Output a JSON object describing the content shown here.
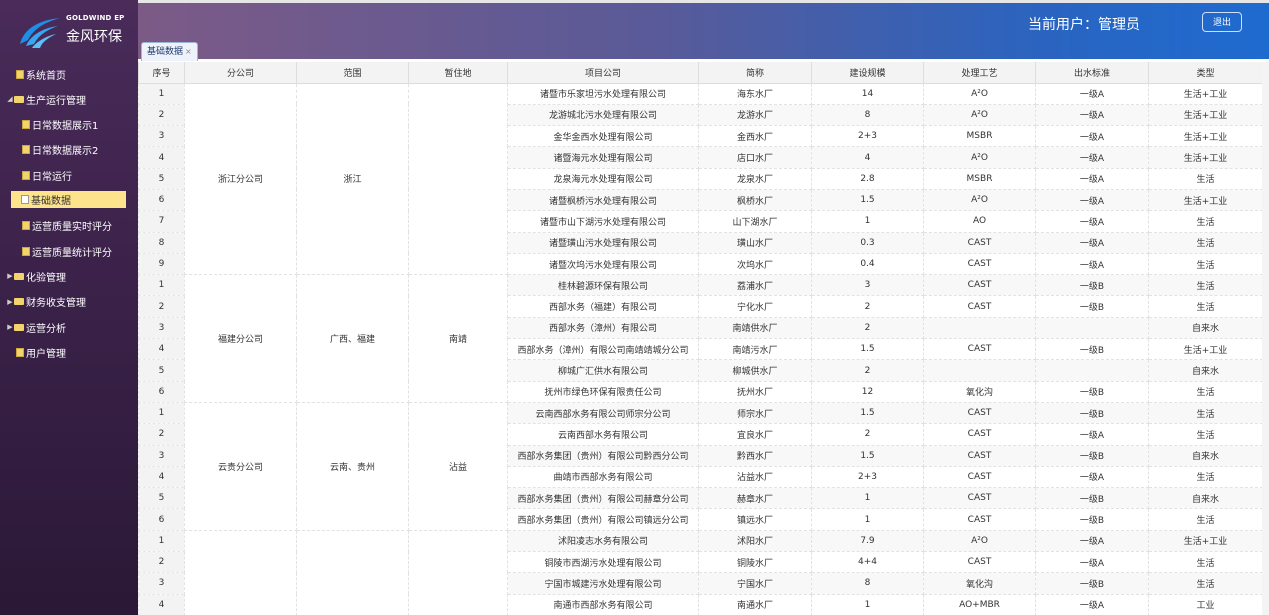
{
  "logo": {
    "en": "GOLDWIND EP",
    "cn": "金风环保"
  },
  "header": {
    "user": "当前用户：管理员",
    "logout": "退出"
  },
  "tab": {
    "label": "基础数据",
    "close": "×"
  },
  "sidebar": {
    "items": [
      {
        "label": "系统首页",
        "type": "file",
        "level": 0
      },
      {
        "label": "生产运行管理",
        "type": "folder",
        "level": 0,
        "expanded": true
      },
      {
        "label": "日常数据展示1",
        "type": "file",
        "level": 1
      },
      {
        "label": "日常数据展示2",
        "type": "file",
        "level": 1
      },
      {
        "label": "日常运行",
        "type": "file",
        "level": 1
      },
      {
        "label": "基础数据",
        "type": "file",
        "level": 1,
        "selected": true
      },
      {
        "label": "运营质量实时评分",
        "type": "file",
        "level": 1
      },
      {
        "label": "运营质量统计评分",
        "type": "file",
        "level": 1
      },
      {
        "label": "化验管理",
        "type": "folder",
        "level": 0,
        "expanded": false
      },
      {
        "label": "财务收支管理",
        "type": "folder",
        "level": 0,
        "expanded": false
      },
      {
        "label": "运营分析",
        "type": "folder",
        "level": 0,
        "expanded": false
      },
      {
        "label": "用户管理",
        "type": "file",
        "level": 0
      }
    ]
  },
  "table": {
    "columns": [
      "序号",
      "分公司",
      "范围",
      "暂住地",
      "项目公司",
      "简称",
      "建设规模",
      "处理工艺",
      "出水标准",
      "类型"
    ],
    "groups": [
      {
        "company": "浙江分公司",
        "scope": "浙江",
        "location": "",
        "rows": [
          [
            "1",
            "诸暨市乐家坦污水处理有限公司",
            "海东水厂",
            "14",
            "A²O",
            "一级A",
            "生活+工业"
          ],
          [
            "2",
            "龙游城北污水处理有限公司",
            "龙游水厂",
            "8",
            "A²O",
            "一级A",
            "生活+工业"
          ],
          [
            "3",
            "金华金西水处理有限公司",
            "金西水厂",
            "2+3",
            "MSBR",
            "一级A",
            "生活+工业"
          ],
          [
            "4",
            "诸暨海元水处理有限公司",
            "店口水厂",
            "4",
            "A²O",
            "一级A",
            "生活+工业"
          ],
          [
            "5",
            "龙泉海元水处理有限公司",
            "龙泉水厂",
            "2.8",
            "MSBR",
            "一级A",
            "生活"
          ],
          [
            "6",
            "诸暨枫桥污水处理有限公司",
            "枫桥水厂",
            "1.5",
            "A²O",
            "一级A",
            "生活+工业"
          ],
          [
            "7",
            "诸暨市山下湖污水处理有限公司",
            "山下湖水厂",
            "1",
            "AO",
            "一级A",
            "生活"
          ],
          [
            "8",
            "诸暨璜山污水处理有限公司",
            "璜山水厂",
            "0.3",
            "CAST",
            "一级A",
            "生活"
          ],
          [
            "9",
            "诸暨次坞污水处理有限公司",
            "次坞水厂",
            "0.4",
            "CAST",
            "一级A",
            "生活"
          ]
        ]
      },
      {
        "company": "福建分公司",
        "scope": "广西、福建",
        "location": "南靖",
        "rows": [
          [
            "1",
            "桂林碧源环保有限公司",
            "荔浦水厂",
            "3",
            "CAST",
            "一级B",
            "生活"
          ],
          [
            "2",
            "西部水务（福建）有限公司",
            "宁化水厂",
            "2",
            "CAST",
            "一级B",
            "生活"
          ],
          [
            "3",
            "西部水务（漳州）有限公司",
            "南靖供水厂",
            "2",
            "",
            "",
            "自来水"
          ],
          [
            "4",
            "西部水务（漳州）有限公司南靖靖城分公司",
            "南靖污水厂",
            "1.5",
            "CAST",
            "一级B",
            "生活+工业"
          ],
          [
            "5",
            "柳城广汇供水有限公司",
            "柳城供水厂",
            "2",
            "",
            "",
            "自来水"
          ],
          [
            "6",
            "抚州市绿色环保有限责任公司",
            "抚州水厂",
            "12",
            "氧化沟",
            "一级B",
            "生活"
          ]
        ]
      },
      {
        "company": "云贵分公司",
        "scope": "云南、贵州",
        "location": "沾益",
        "rows": [
          [
            "1",
            "云南西部水务有限公司师宗分公司",
            "师宗水厂",
            "1.5",
            "CAST",
            "一级B",
            "生活"
          ],
          [
            "2",
            "云南西部水务有限公司",
            "宜良水厂",
            "2",
            "CAST",
            "一级A",
            "生活"
          ],
          [
            "3",
            "西部水务集团（贵州）有限公司黔西分公司",
            "黔西水厂",
            "1.5",
            "CAST",
            "一级B",
            "自来水"
          ],
          [
            "4",
            "曲靖市西部水务有限公司",
            "沾益水厂",
            "2+3",
            "CAST",
            "一级A",
            "生活"
          ],
          [
            "5",
            "西部水务集团（贵州）有限公司赫章分公司",
            "赫章水厂",
            "1",
            "CAST",
            "一级B",
            "自来水"
          ],
          [
            "6",
            "西部水务集团（贵州）有限公司镇远分公司",
            "镇远水厂",
            "1",
            "CAST",
            "一级B",
            "生活"
          ]
        ]
      },
      {
        "company": "",
        "scope": "",
        "location": "",
        "rows": [
          [
            "1",
            "沭阳凌志水务有限公司",
            "沭阳水厂",
            "7.9",
            "A²O",
            "一级A",
            "生活+工业"
          ],
          [
            "2",
            "铜陵市西湖污水处理有限公司",
            "铜陵水厂",
            "4+4",
            "CAST",
            "一级A",
            "生活"
          ],
          [
            "3",
            "宁国市城建污水处理有限公司",
            "宁国水厂",
            "8",
            "氧化沟",
            "一级B",
            "生活"
          ],
          [
            "4",
            "南通市西部水务有限公司",
            "南通水厂",
            "1",
            "AO+MBR",
            "一级A",
            "工业"
          ]
        ]
      }
    ]
  }
}
